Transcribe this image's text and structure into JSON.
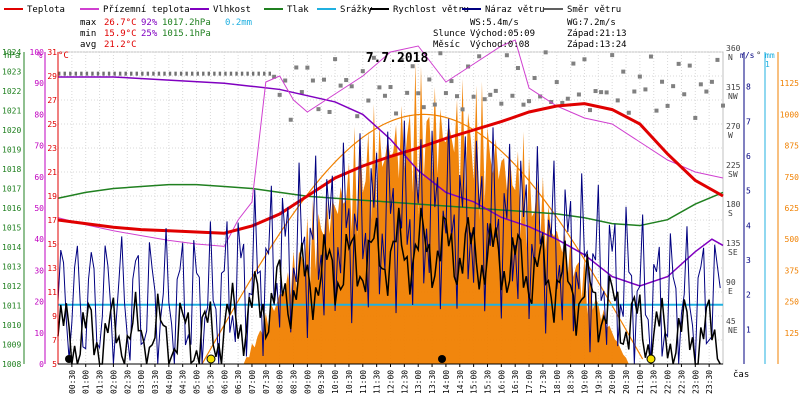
{
  "chart_data": {
    "type": "line",
    "title": "7.7.2018",
    "legend": [
      {
        "name": "Teplota",
        "color": "#e00000"
      },
      {
        "name": "Přízemní teplota",
        "color": "#d040d0"
      },
      {
        "name": "Vlhkost",
        "color": "#8000c0"
      },
      {
        "name": "Tlak",
        "color": "#208020"
      },
      {
        "name": "Srážky",
        "color": "#20b0e0"
      },
      {
        "name": "Rychlost větru",
        "color": "#000000"
      },
      {
        "name": "Náraz větru",
        "color": "#000080"
      },
      {
        "name": "Směr větru",
        "color": "#606060"
      }
    ],
    "stats": {
      "max": {
        "label": "max",
        "temp": "26.7°C",
        "hum": "92%",
        "press": "1017.2hPa",
        "rain": "0.2mm"
      },
      "min": {
        "label": "min",
        "temp": "15.9°C",
        "hum": "25%",
        "press": "1015.1hPa"
      },
      "avg": {
        "label": "avg",
        "temp": "21.2°C"
      }
    },
    "wind_info": {
      "ws": "WS:5.4m/s",
      "wg": "WG:7.2m/s"
    },
    "sun_info": {
      "sun": "Slunce",
      "rise": "Východ:05:09",
      "set": "Západ:21:13"
    },
    "moon_info": {
      "moon": "Měsíc",
      "rise": "Východ:0:08",
      "set": "Západ:13:24"
    },
    "axes": {
      "hpa": {
        "label": "hPa",
        "ticks": [
          "1008",
          "1009",
          "1010",
          "1011",
          "1012",
          "1013",
          "1014",
          "1015",
          "1016",
          "1017",
          "1018",
          "1019",
          "1020",
          "1021",
          "1022",
          "1023",
          "1024"
        ]
      },
      "pct": {
        "label": "%",
        "ticks": [
          "0",
          "10",
          "20",
          "30",
          "40",
          "50",
          "60",
          "70",
          "80",
          "90",
          "100"
        ]
      },
      "temp": {
        "label": "°C",
        "ticks": [
          "5",
          "7",
          "9",
          "11",
          "13",
          "15",
          "17",
          "19",
          "21",
          "23",
          "25",
          "27",
          "29",
          "31"
        ]
      },
      "dir": {
        "label": "°",
        "ticks": [
          {
            "deg": "45",
            "name": "NE"
          },
          {
            "deg": "90",
            "name": "E"
          },
          {
            "deg": "135",
            "name": "SE"
          },
          {
            "deg": "180",
            "name": "S"
          },
          {
            "deg": "225",
            "name": "SW"
          },
          {
            "deg": "270",
            "name": "W"
          },
          {
            "deg": "315",
            "name": "NW"
          },
          {
            "deg": "360",
            "name": "N"
          }
        ]
      },
      "ms": {
        "label": "m/s",
        "ticks": [
          "1",
          "2",
          "3",
          "4",
          "5",
          "6",
          "7",
          "8"
        ]
      },
      "mm": {
        "label": "mm",
        "ticks": [
          "1"
        ]
      },
      "wm2": {
        "ticks": [
          "125",
          "250",
          "375",
          "500",
          "625",
          "750",
          "875",
          "1000",
          "1125"
        ]
      },
      "time": {
        "label": "čas",
        "ticks": [
          "00:30",
          "01:00",
          "01:30",
          "02:00",
          "02:30",
          "03:00",
          "03:30",
          "04:00",
          "04:30",
          "05:00",
          "05:30",
          "06:00",
          "06:30",
          "07:00",
          "07:30",
          "08:00",
          "08:30",
          "09:00",
          "09:30",
          "10:00",
          "10:30",
          "11:00",
          "11:30",
          "12:00",
          "12:30",
          "13:00",
          "13:30",
          "14:00",
          "14:30",
          "15:00",
          "15:30",
          "16:00",
          "16:30",
          "17:00",
          "17:30",
          "18:00",
          "18:30",
          "19:00",
          "19:30",
          "20:00",
          "20:30",
          "21:00",
          "21:30",
          "22:00",
          "22:30",
          "23:00",
          "23:30"
        ]
      }
    },
    "series": [
      {
        "name": "Teplota",
        "hours": [
          0,
          1,
          2,
          3,
          4,
          5,
          6,
          7,
          8,
          9,
          10,
          11,
          12,
          13,
          14,
          15,
          16,
          17,
          18,
          19,
          20,
          21,
          22,
          23,
          24
        ],
        "values": [
          17.0,
          16.7,
          16.4,
          16.2,
          16.1,
          16.0,
          15.9,
          16.5,
          17.5,
          19.0,
          20.5,
          21.5,
          22.3,
          23.0,
          23.8,
          24.5,
          25.2,
          26.0,
          26.5,
          26.7,
          26.2,
          25.0,
          22.5,
          20.3,
          19.0
        ]
      },
      {
        "name": "Vlhkost",
        "hours": [
          0,
          2,
          4,
          6,
          7,
          8,
          9,
          10,
          11,
          12,
          13,
          14,
          15,
          16,
          17,
          18,
          19,
          20,
          21,
          22,
          23,
          23.6,
          24
        ],
        "values": [
          92,
          92,
          91,
          90,
          89,
          88,
          86,
          84,
          80,
          72,
          62,
          55,
          52,
          47,
          44,
          40,
          35,
          28,
          25,
          28,
          36,
          40,
          38
        ]
      },
      {
        "name": "Tlak",
        "hours": [
          0,
          1,
          2,
          3,
          4,
          5,
          6,
          7,
          8,
          9,
          10,
          11,
          12,
          13,
          14,
          15,
          16,
          17,
          18,
          19,
          20,
          21,
          22,
          23,
          24
        ],
        "values": [
          1016.5,
          1016.8,
          1017.0,
          1017.1,
          1017.2,
          1017.2,
          1017.1,
          1017.0,
          1016.8,
          1016.6,
          1016.5,
          1016.4,
          1016.3,
          1016.2,
          1016.1,
          1016.0,
          1015.9,
          1015.8,
          1015.7,
          1015.5,
          1015.2,
          1015.1,
          1015.4,
          1016.2,
          1016.8
        ]
      },
      {
        "name": "Přízemní teplota",
        "hours": [
          0,
          1,
          2,
          3,
          4,
          5,
          6,
          6.5,
          7,
          7.5,
          8,
          8.5,
          9,
          10,
          11,
          12,
          13,
          13.5,
          14,
          15,
          16,
          16.5,
          17,
          18,
          19,
          20,
          21,
          22,
          23,
          24
        ],
        "values": [
          17.2,
          16.6,
          16.1,
          15.7,
          15.3,
          15.0,
          14.8,
          17.0,
          18.5,
          28.5,
          29.0,
          27.0,
          26.0,
          27.5,
          29.0,
          31.0,
          31.5,
          30.0,
          28.5,
          30.0,
          31.5,
          32.0,
          28.0,
          26.5,
          25.5,
          25.0,
          23.5,
          22.0,
          21.0,
          20.5
        ]
      },
      {
        "name": "Srážky",
        "threshold_mm": 0.2
      }
    ]
  }
}
